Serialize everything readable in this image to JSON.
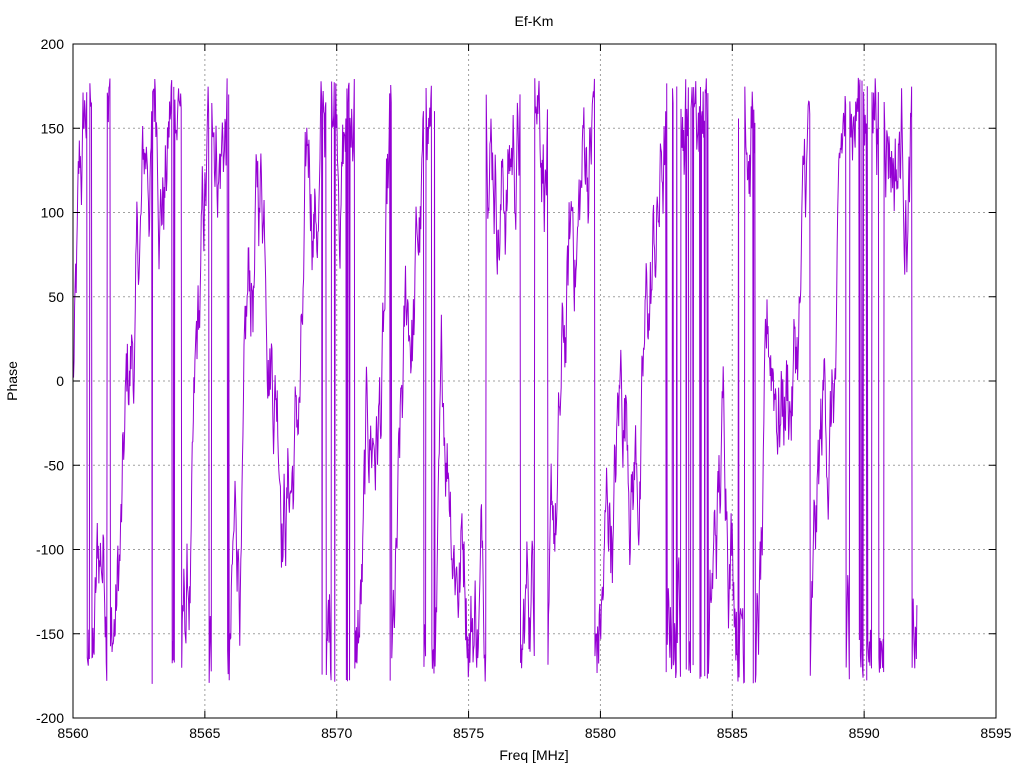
{
  "chart_data": {
    "type": "line",
    "title": "Ef-Km",
    "xlabel": "Freq [MHz]",
    "ylabel": "Phase",
    "xlim": [
      8560,
      8595
    ],
    "ylim": [
      -200,
      200
    ],
    "x_ticks": [
      8560,
      8565,
      8570,
      8575,
      8580,
      8585,
      8590,
      8595
    ],
    "y_ticks": [
      -200,
      -150,
      -100,
      -50,
      0,
      50,
      100,
      150,
      200
    ],
    "grid": true,
    "legend": "none",
    "series": [
      {
        "color": "#9400d3",
        "x_start": 8560,
        "x_end": 8592,
        "points": 1600,
        "values": []
      }
    ]
  }
}
